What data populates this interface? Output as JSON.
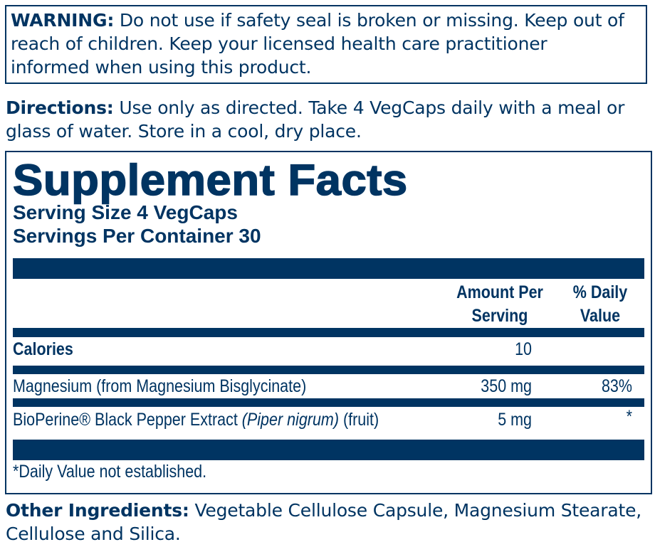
{
  "colors": {
    "brand": "#003462"
  },
  "warning": {
    "label": "WARNING:",
    "lines": [
      " Do not use if safety seal is broken or missing. Keep out of",
      "reach of children. Keep your licensed health care practitioner",
      "informed when using this product."
    ]
  },
  "directions": {
    "label": "Directions:",
    "lines": [
      " Use only as directed. Take 4 VegCaps daily with a meal or",
      "glass of water. Store in a cool, dry place."
    ]
  },
  "facts": {
    "title": "Supplement Facts",
    "serving_size": "Serving Size 4 VegCaps",
    "servings_per_container": "Servings Per Container 30",
    "header": {
      "amount": [
        "Amount Per",
        "Serving"
      ],
      "dv": [
        "% Daily",
        "Value"
      ]
    },
    "rows": [
      {
        "name": "Calories",
        "amount": "10",
        "dv": ""
      },
      {
        "name": "Magnesium (from Magnesium Bisglycinate)",
        "amount": "350 mg",
        "dv": "83%"
      },
      {
        "name_pre": "BioPerine® Black Pepper Extract ",
        "name_italic": "(Piper nigrum)",
        "name_post": " (fruit)",
        "amount": "5 mg",
        "dv": "*"
      }
    ],
    "footnote": "*Daily Value not established."
  },
  "other": {
    "label": "Other Ingredients:",
    "lines": [
      " Vegetable Cellulose Capsule, Magnesium Stearate,",
      "Cellulose and Silica."
    ]
  }
}
